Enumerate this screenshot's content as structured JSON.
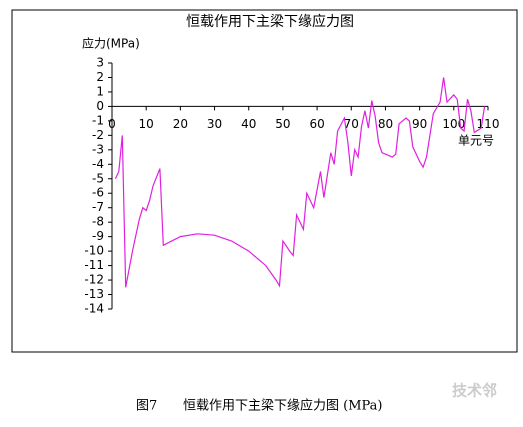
{
  "chart_data": {
    "type": "line",
    "title": "恒载作用下主梁下缘应力图",
    "y_label": "应力(MPa)",
    "x_label": "单元号",
    "x": [
      1,
      2,
      3,
      4,
      6,
      8,
      9,
      10,
      11,
      12,
      14,
      15,
      20,
      25,
      30,
      35,
      40,
      45,
      48,
      49,
      50,
      52,
      53,
      54,
      56,
      57,
      59,
      61,
      62,
      64,
      65,
      66,
      68,
      69,
      70,
      71,
      72,
      73,
      74,
      75,
      76,
      77,
      78,
      79,
      82,
      83,
      84,
      86,
      87,
      88,
      90,
      91,
      92,
      94,
      96,
      97,
      98,
      100,
      101,
      102,
      103,
      104,
      105,
      106,
      108,
      109
    ],
    "values": [
      -5,
      -4.5,
      -2,
      -12.5,
      -10,
      -7.8,
      -7,
      -7.2,
      -6.5,
      -5.5,
      -4.3,
      -9.6,
      -9,
      -8.8,
      -8.9,
      -9.3,
      -10,
      -11,
      -12,
      -12.4,
      -9.3,
      -10,
      -10.3,
      -7.5,
      -8.5,
      -6,
      -7,
      -4.5,
      -6.3,
      -3.2,
      -4,
      -1.7,
      -0.8,
      -2.5,
      -4.8,
      -3,
      -3.5,
      -1.4,
      -0.3,
      -1.5,
      0.4,
      -0.7,
      -2.5,
      -3.2,
      -3.5,
      -3.3,
      -1.2,
      -0.8,
      -1,
      -2.8,
      -3.8,
      -4.2,
      -3.5,
      -0.5,
      0.3,
      2,
      0.3,
      0.8,
      0.5,
      -1.5,
      -1.7,
      0.5,
      -0.3,
      -1.8,
      -1.5,
      0
    ],
    "color": "#e020e0",
    "xlim": [
      0,
      110
    ],
    "xticks": [
      0,
      10,
      20,
      30,
      40,
      50,
      60,
      70,
      80,
      90,
      100,
      110
    ],
    "ylim": [
      -14,
      3
    ],
    "yticks": [
      3,
      2,
      1,
      0,
      -1,
      -2,
      -3,
      -4,
      -5,
      -6,
      -7,
      -8,
      -9,
      -10,
      -11,
      -12,
      -13,
      -14
    ],
    "grid": false
  },
  "caption": {
    "figure": "图7",
    "text": "恒载作用下主梁下缘应力图 (MPa)"
  },
  "watermark": "技术邻"
}
